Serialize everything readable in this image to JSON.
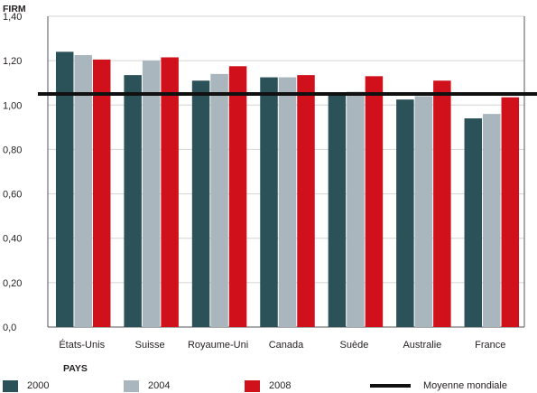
{
  "chart_data": {
    "type": "bar",
    "ylabel": "FIRM",
    "xlabel": "PAYS",
    "categories": [
      "États-Unis",
      "Suisse",
      "Royaume-Uni",
      "Canada",
      "Suède",
      "Australie",
      "France"
    ],
    "series": [
      {
        "name": "2000",
        "color": "#2b5258",
        "values": [
          1.24,
          1.135,
          1.11,
          1.125,
          1.05,
          1.025,
          0.94
        ]
      },
      {
        "name": "2004",
        "color": "#a9b6bd",
        "values": [
          1.225,
          1.2,
          1.14,
          1.125,
          1.06,
          1.04,
          0.96
        ]
      },
      {
        "name": "2008",
        "color": "#d0111b",
        "values": [
          1.205,
          1.215,
          1.175,
          1.135,
          1.13,
          1.11,
          1.035
        ]
      }
    ],
    "reference_line": {
      "name": "Moyenne mondiale",
      "value": 1.05,
      "color": "#111111"
    },
    "ylim": [
      0,
      1.4
    ],
    "yticks": [
      "0,0",
      "0,20",
      "0,40",
      "0,60",
      "0,80",
      "1,00",
      "1,20",
      "1,40"
    ],
    "ytick_values": [
      0,
      0.2,
      0.4,
      0.6,
      0.8,
      1.0,
      1.2,
      1.4
    ],
    "grid": "horizontal",
    "legend_position": "bottom"
  }
}
